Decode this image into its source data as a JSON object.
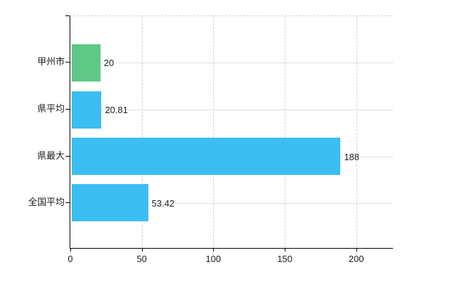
{
  "chart_data": {
    "type": "bar",
    "orientation": "horizontal",
    "title": "",
    "categories": [
      "甲州市",
      "県平均",
      "県最大",
      "全国平均"
    ],
    "values": [
      20,
      20.81,
      188,
      53.42
    ],
    "value_labels": [
      "20",
      "20.81",
      "188",
      "53.42"
    ],
    "bar_colors": [
      "#5fc887",
      "#3cbef2",
      "#3cbef2",
      "#3cbef2"
    ],
    "x_ticks": [
      0,
      50,
      100,
      150,
      200
    ],
    "x_tick_labels": [
      "0",
      "50",
      "100",
      "150",
      "200"
    ],
    "xlim": [
      0,
      225.7
    ],
    "grid": {
      "vertical": "dashed",
      "horizontal": "solid-at-category-centers",
      "top_border": "dashed"
    },
    "legend": "none"
  },
  "colors": {
    "background": "#ffffff",
    "axis": "#000000",
    "text": "#1c1c1c",
    "vgrid": "#d7cfd7",
    "hgrid": "#d8e2d8",
    "bar_blue": "#3cbef2",
    "bar_green": "#5fc887"
  }
}
